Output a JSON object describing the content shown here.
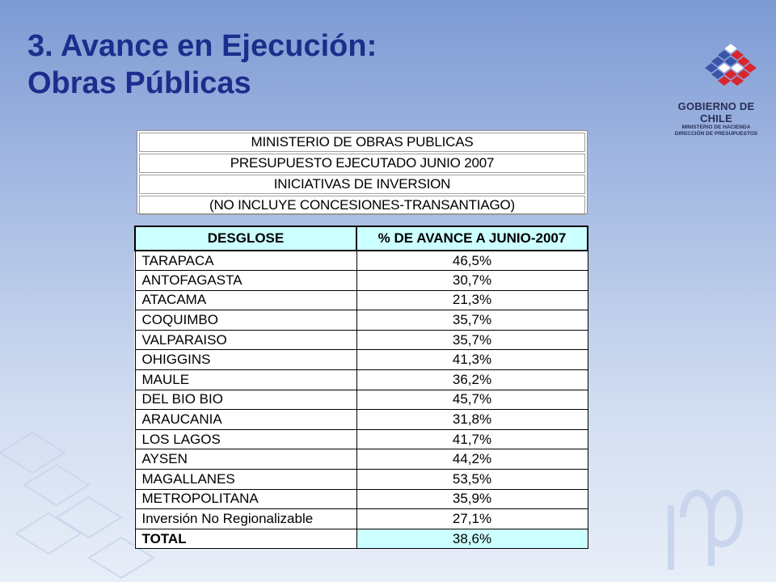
{
  "slide": {
    "title_line1": "3. Avance en Ejecución:",
    "title_line2": "Obras Públicas"
  },
  "logo": {
    "main": "GOBIERNO DE CHILE",
    "sub1": "MINISTERIO DE HACIENDA",
    "sub2": "DIRECCIÓN DE PRESUPUESTOS"
  },
  "header": {
    "line1": "MINISTERIO DE OBRAS PUBLICAS",
    "line2": "PRESUPUESTO EJECUTADO JUNIO 2007",
    "line3": "INICIATIVAS DE INVERSION",
    "line4": "(NO INCLUYE CONCESIONES-TRANSANTIAGO)"
  },
  "table": {
    "columns": [
      "DESGLOSE",
      "% DE AVANCE A JUNIO-2007"
    ],
    "rows": [
      {
        "region": "TARAPACA",
        "value": "46,5%"
      },
      {
        "region": "ANTOFAGASTA",
        "value": "30,7%"
      },
      {
        "region": "ATACAMA",
        "value": "21,3%"
      },
      {
        "region": "COQUIMBO",
        "value": "35,7%"
      },
      {
        "region": "VALPARAISO",
        "value": "35,7%"
      },
      {
        "region": "OHIGGINS",
        "value": "41,3%"
      },
      {
        "region": "MAULE",
        "value": "36,2%"
      },
      {
        "region": "DEL BIO BIO",
        "value": "45,7%"
      },
      {
        "region": "ARAUCANIA",
        "value": "31,8%"
      },
      {
        "region": "LOS LAGOS",
        "value": "41,7%"
      },
      {
        "region": "AYSEN",
        "value": "44,2%"
      },
      {
        "region": "MAGALLANES",
        "value": "53,5%"
      },
      {
        "region": "METROPOLITANA",
        "value": "35,9%"
      },
      {
        "region": "Inversión No Regionalizable",
        "value": "27,1%"
      }
    ],
    "total": {
      "region": "TOTAL",
      "value": "38,6%"
    }
  },
  "colors": {
    "title": "#1c2e8c",
    "header_fill": "#ccffff",
    "logo_blue": "#3a55a8",
    "logo_red": "#d9262e"
  }
}
